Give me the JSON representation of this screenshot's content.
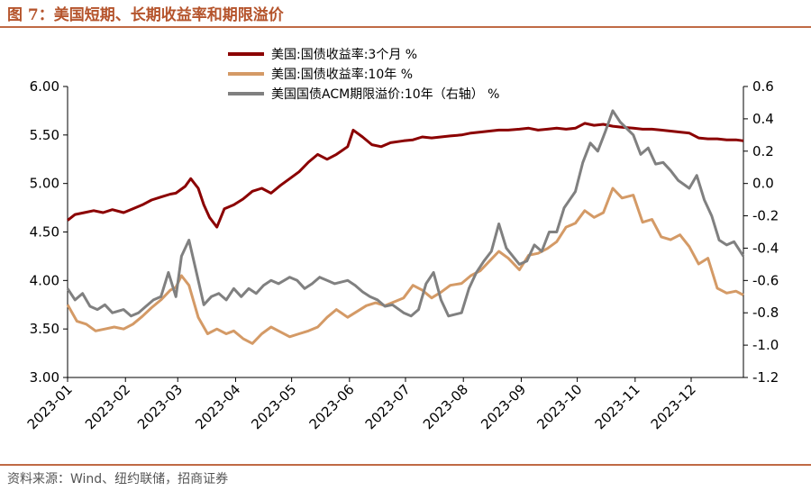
{
  "figure": {
    "title": "图 7：美国短期、长期收益率和期限溢价",
    "source": "资料来源：Wind、纽约联储，招商证券"
  },
  "colors": {
    "accent": "#c06a45",
    "series_3m": "#8b0000",
    "series_10y": "#d49a66",
    "series_acm": "#808080"
  },
  "chart_data": {
    "type": "line",
    "legend": "top",
    "grid": false,
    "x_tick_labels": [
      "2023-01",
      "2023-02",
      "2023-03",
      "2023-04",
      "2023-05",
      "2023-06",
      "2023-07",
      "2023-08",
      "2023-09",
      "2023-10",
      "2023-11",
      "2023-12"
    ],
    "y_left": {
      "ylim": [
        3.0,
        6.0
      ],
      "ticks": [
        "3.00",
        "3.50",
        "4.00",
        "4.50",
        "5.00",
        "5.50",
        "6.00"
      ]
    },
    "y_right": {
      "ylim": [
        -1.2,
        0.6
      ],
      "ticks": [
        "-1.2",
        "-1.0",
        "-0.8",
        "-0.6",
        "-0.4",
        "-0.2",
        "0.0",
        "0.2",
        "0.4",
        "0.6"
      ]
    },
    "series": [
      {
        "name": "美国:国债收益率:3个月 %",
        "axis": "left",
        "points": [
          [
            "2023-01-01",
            4.62
          ],
          [
            "2023-01-05",
            4.68
          ],
          [
            "2023-01-10",
            4.7
          ],
          [
            "2023-01-15",
            4.72
          ],
          [
            "2023-01-20",
            4.7
          ],
          [
            "2023-01-25",
            4.73
          ],
          [
            "2023-01-31",
            4.7
          ],
          [
            "2023-02-05",
            4.74
          ],
          [
            "2023-02-10",
            4.78
          ],
          [
            "2023-02-15",
            4.83
          ],
          [
            "2023-02-20",
            4.86
          ],
          [
            "2023-02-25",
            4.89
          ],
          [
            "2023-02-28",
            4.9
          ],
          [
            "2023-03-05",
            4.97
          ],
          [
            "2023-03-08",
            5.05
          ],
          [
            "2023-03-12",
            4.95
          ],
          [
            "2023-03-15",
            4.78
          ],
          [
            "2023-03-18",
            4.65
          ],
          [
            "2023-03-22",
            4.55
          ],
          [
            "2023-03-26",
            4.74
          ],
          [
            "2023-03-31",
            4.78
          ],
          [
            "2023-04-05",
            4.84
          ],
          [
            "2023-04-10",
            4.92
          ],
          [
            "2023-04-15",
            4.95
          ],
          [
            "2023-04-20",
            4.9
          ],
          [
            "2023-04-25",
            4.98
          ],
          [
            "2023-04-30",
            5.05
          ],
          [
            "2023-05-05",
            5.12
          ],
          [
            "2023-05-10",
            5.22
          ],
          [
            "2023-05-15",
            5.3
          ],
          [
            "2023-05-20",
            5.25
          ],
          [
            "2023-05-25",
            5.3
          ],
          [
            "2023-05-31",
            5.38
          ],
          [
            "2023-06-03",
            5.55
          ],
          [
            "2023-06-08",
            5.48
          ],
          [
            "2023-06-13",
            5.4
          ],
          [
            "2023-06-18",
            5.38
          ],
          [
            "2023-06-23",
            5.42
          ],
          [
            "2023-06-30",
            5.44
          ],
          [
            "2023-07-05",
            5.45
          ],
          [
            "2023-07-10",
            5.48
          ],
          [
            "2023-07-15",
            5.47
          ],
          [
            "2023-07-20",
            5.48
          ],
          [
            "2023-07-25",
            5.49
          ],
          [
            "2023-07-31",
            5.5
          ],
          [
            "2023-08-05",
            5.52
          ],
          [
            "2023-08-10",
            5.53
          ],
          [
            "2023-08-15",
            5.54
          ],
          [
            "2023-08-20",
            5.55
          ],
          [
            "2023-08-25",
            5.55
          ],
          [
            "2023-08-31",
            5.56
          ],
          [
            "2023-09-05",
            5.57
          ],
          [
            "2023-09-10",
            5.55
          ],
          [
            "2023-09-15",
            5.56
          ],
          [
            "2023-09-20",
            5.57
          ],
          [
            "2023-09-25",
            5.56
          ],
          [
            "2023-09-30",
            5.57
          ],
          [
            "2023-10-05",
            5.62
          ],
          [
            "2023-10-10",
            5.6
          ],
          [
            "2023-10-15",
            5.61
          ],
          [
            "2023-10-20",
            5.59
          ],
          [
            "2023-10-25",
            5.58
          ],
          [
            "2023-10-31",
            5.57
          ],
          [
            "2023-11-05",
            5.56
          ],
          [
            "2023-11-10",
            5.56
          ],
          [
            "2023-11-15",
            5.55
          ],
          [
            "2023-11-20",
            5.54
          ],
          [
            "2023-11-25",
            5.53
          ],
          [
            "2023-11-30",
            5.52
          ],
          [
            "2023-12-05",
            5.47
          ],
          [
            "2023-12-10",
            5.46
          ],
          [
            "2023-12-15",
            5.46
          ],
          [
            "2023-12-20",
            5.45
          ],
          [
            "2023-12-25",
            5.45
          ],
          [
            "2023-12-29",
            5.44
          ]
        ]
      },
      {
        "name": "美国:国债收益率:10年 %",
        "axis": "left",
        "points": [
          [
            "2023-01-01",
            3.75
          ],
          [
            "2023-01-06",
            3.58
          ],
          [
            "2023-01-11",
            3.55
          ],
          [
            "2023-01-16",
            3.48
          ],
          [
            "2023-01-21",
            3.5
          ],
          [
            "2023-01-26",
            3.52
          ],
          [
            "2023-01-31",
            3.5
          ],
          [
            "2023-02-05",
            3.55
          ],
          [
            "2023-02-10",
            3.63
          ],
          [
            "2023-02-15",
            3.72
          ],
          [
            "2023-02-20",
            3.8
          ],
          [
            "2023-02-25",
            3.9
          ],
          [
            "2023-02-28",
            3.93
          ],
          [
            "2023-03-03",
            4.05
          ],
          [
            "2023-03-07",
            3.95
          ],
          [
            "2023-03-12",
            3.62
          ],
          [
            "2023-03-17",
            3.45
          ],
          [
            "2023-03-22",
            3.5
          ],
          [
            "2023-03-27",
            3.45
          ],
          [
            "2023-03-31",
            3.48
          ],
          [
            "2023-04-05",
            3.4
          ],
          [
            "2023-04-10",
            3.35
          ],
          [
            "2023-04-15",
            3.45
          ],
          [
            "2023-04-20",
            3.52
          ],
          [
            "2023-04-25",
            3.47
          ],
          [
            "2023-04-30",
            3.42
          ],
          [
            "2023-05-05",
            3.45
          ],
          [
            "2023-05-10",
            3.48
          ],
          [
            "2023-05-15",
            3.52
          ],
          [
            "2023-05-20",
            3.62
          ],
          [
            "2023-05-25",
            3.7
          ],
          [
            "2023-05-31",
            3.62
          ],
          [
            "2023-06-05",
            3.68
          ],
          [
            "2023-06-10",
            3.74
          ],
          [
            "2023-06-15",
            3.77
          ],
          [
            "2023-06-20",
            3.74
          ],
          [
            "2023-06-25",
            3.78
          ],
          [
            "2023-06-30",
            3.82
          ],
          [
            "2023-07-05",
            3.95
          ],
          [
            "2023-07-10",
            3.9
          ],
          [
            "2023-07-15",
            3.82
          ],
          [
            "2023-07-20",
            3.88
          ],
          [
            "2023-07-25",
            3.95
          ],
          [
            "2023-07-31",
            3.97
          ],
          [
            "2023-08-05",
            4.05
          ],
          [
            "2023-08-10",
            4.1
          ],
          [
            "2023-08-15",
            4.2
          ],
          [
            "2023-08-20",
            4.3
          ],
          [
            "2023-08-25",
            4.23
          ],
          [
            "2023-08-31",
            4.11
          ],
          [
            "2023-09-05",
            4.26
          ],
          [
            "2023-09-10",
            4.28
          ],
          [
            "2023-09-15",
            4.33
          ],
          [
            "2023-09-20",
            4.4
          ],
          [
            "2023-09-25",
            4.55
          ],
          [
            "2023-09-30",
            4.59
          ],
          [
            "2023-10-05",
            4.72
          ],
          [
            "2023-10-10",
            4.65
          ],
          [
            "2023-10-15",
            4.7
          ],
          [
            "2023-10-20",
            4.95
          ],
          [
            "2023-10-25",
            4.85
          ],
          [
            "2023-10-31",
            4.88
          ],
          [
            "2023-11-05",
            4.6
          ],
          [
            "2023-11-10",
            4.63
          ],
          [
            "2023-11-15",
            4.45
          ],
          [
            "2023-11-20",
            4.42
          ],
          [
            "2023-11-25",
            4.47
          ],
          [
            "2023-11-30",
            4.35
          ],
          [
            "2023-12-05",
            4.17
          ],
          [
            "2023-12-10",
            4.23
          ],
          [
            "2023-12-15",
            3.92
          ],
          [
            "2023-12-20",
            3.87
          ],
          [
            "2023-12-25",
            3.89
          ],
          [
            "2023-12-29",
            3.85
          ]
        ]
      },
      {
        "name": "美国国债ACM期限溢价:10年（右轴） %",
        "axis": "right",
        "points": [
          [
            "2023-01-01",
            -0.65
          ],
          [
            "2023-01-05",
            -0.72
          ],
          [
            "2023-01-09",
            -0.68
          ],
          [
            "2023-01-13",
            -0.76
          ],
          [
            "2023-01-17",
            -0.78
          ],
          [
            "2023-01-21",
            -0.75
          ],
          [
            "2023-01-25",
            -0.8
          ],
          [
            "2023-01-31",
            -0.78
          ],
          [
            "2023-02-04",
            -0.82
          ],
          [
            "2023-02-08",
            -0.8
          ],
          [
            "2023-02-12",
            -0.76
          ],
          [
            "2023-02-16",
            -0.72
          ],
          [
            "2023-02-20",
            -0.7
          ],
          [
            "2023-02-24",
            -0.55
          ],
          [
            "2023-02-28",
            -0.7
          ],
          [
            "2023-03-03",
            -0.45
          ],
          [
            "2023-03-07",
            -0.35
          ],
          [
            "2023-03-11",
            -0.55
          ],
          [
            "2023-03-15",
            -0.75
          ],
          [
            "2023-03-19",
            -0.7
          ],
          [
            "2023-03-23",
            -0.68
          ],
          [
            "2023-03-27",
            -0.72
          ],
          [
            "2023-03-31",
            -0.65
          ],
          [
            "2023-04-04",
            -0.7
          ],
          [
            "2023-04-08",
            -0.65
          ],
          [
            "2023-04-12",
            -0.68
          ],
          [
            "2023-04-16",
            -0.63
          ],
          [
            "2023-04-20",
            -0.6
          ],
          [
            "2023-04-24",
            -0.62
          ],
          [
            "2023-04-30",
            -0.58
          ],
          [
            "2023-05-04",
            -0.6
          ],
          [
            "2023-05-08",
            -0.65
          ],
          [
            "2023-05-12",
            -0.62
          ],
          [
            "2023-05-16",
            -0.58
          ],
          [
            "2023-05-20",
            -0.6
          ],
          [
            "2023-05-24",
            -0.62
          ],
          [
            "2023-05-31",
            -0.6
          ],
          [
            "2023-06-04",
            -0.63
          ],
          [
            "2023-06-08",
            -0.67
          ],
          [
            "2023-06-12",
            -0.7
          ],
          [
            "2023-06-16",
            -0.72
          ],
          [
            "2023-06-20",
            -0.76
          ],
          [
            "2023-06-24",
            -0.75
          ],
          [
            "2023-06-30",
            -0.8
          ],
          [
            "2023-07-04",
            -0.82
          ],
          [
            "2023-07-08",
            -0.78
          ],
          [
            "2023-07-12",
            -0.62
          ],
          [
            "2023-07-16",
            -0.55
          ],
          [
            "2023-07-20",
            -0.72
          ],
          [
            "2023-07-24",
            -0.82
          ],
          [
            "2023-07-31",
            -0.8
          ],
          [
            "2023-08-04",
            -0.65
          ],
          [
            "2023-08-08",
            -0.55
          ],
          [
            "2023-08-12",
            -0.48
          ],
          [
            "2023-08-16",
            -0.42
          ],
          [
            "2023-08-20",
            -0.25
          ],
          [
            "2023-08-24",
            -0.4
          ],
          [
            "2023-08-31",
            -0.5
          ],
          [
            "2023-09-04",
            -0.48
          ],
          [
            "2023-09-08",
            -0.38
          ],
          [
            "2023-09-12",
            -0.42
          ],
          [
            "2023-09-16",
            -0.3
          ],
          [
            "2023-09-20",
            -0.3
          ],
          [
            "2023-09-24",
            -0.15
          ],
          [
            "2023-09-30",
            -0.05
          ],
          [
            "2023-10-04",
            0.13
          ],
          [
            "2023-10-08",
            0.25
          ],
          [
            "2023-10-12",
            0.2
          ],
          [
            "2023-10-16",
            0.32
          ],
          [
            "2023-10-20",
            0.45
          ],
          [
            "2023-10-24",
            0.38
          ],
          [
            "2023-10-31",
            0.3
          ],
          [
            "2023-11-04",
            0.18
          ],
          [
            "2023-11-08",
            0.22
          ],
          [
            "2023-11-12",
            0.12
          ],
          [
            "2023-11-16",
            0.13
          ],
          [
            "2023-11-20",
            0.08
          ],
          [
            "2023-11-24",
            0.02
          ],
          [
            "2023-11-30",
            -0.03
          ],
          [
            "2023-12-04",
            0.05
          ],
          [
            "2023-12-08",
            -0.1
          ],
          [
            "2023-12-12",
            -0.2
          ],
          [
            "2023-12-16",
            -0.35
          ],
          [
            "2023-12-20",
            -0.38
          ],
          [
            "2023-12-24",
            -0.36
          ],
          [
            "2023-12-29",
            -0.45
          ]
        ]
      }
    ]
  }
}
